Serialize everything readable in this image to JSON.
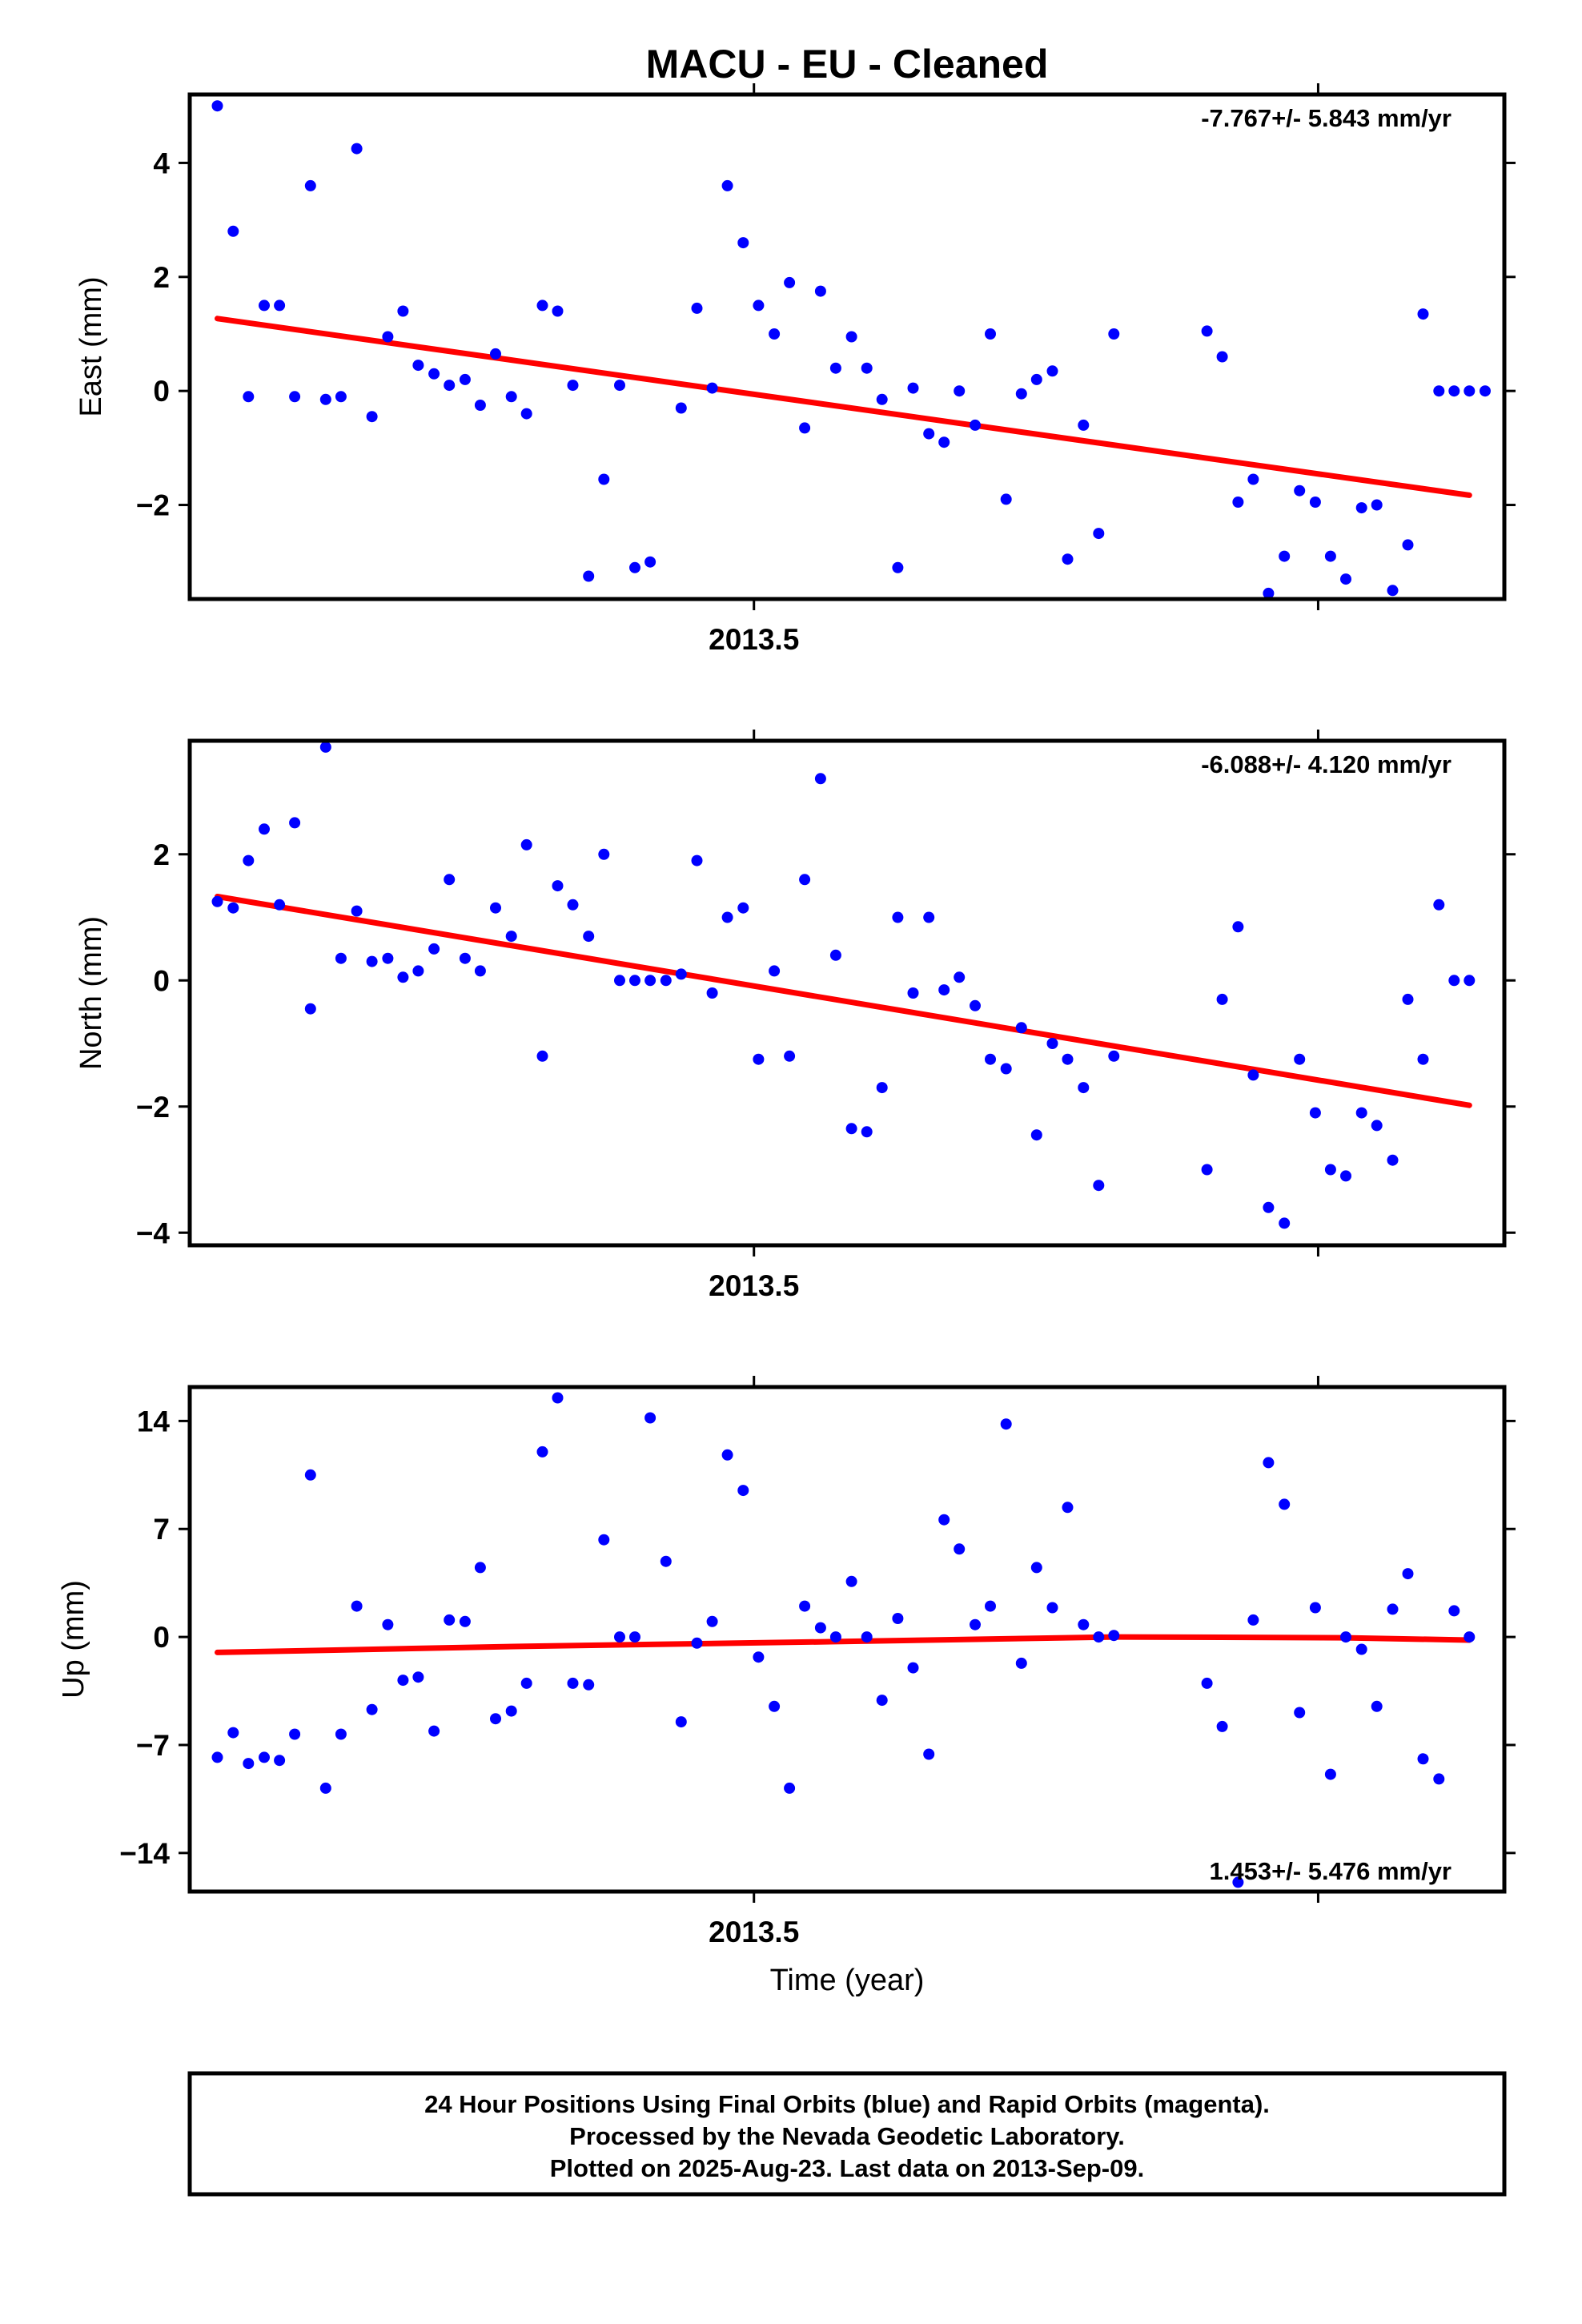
{
  "title": "MACU  - EU - Cleaned",
  "colors": {
    "points": "#0000ff",
    "fit": "#ff0000",
    "frame": "#000000"
  },
  "footer": {
    "line1": "24 Hour Positions Using Final Orbits (blue) and Rapid Orbits (magenta).",
    "line2": "Processed by the Nevada Geodetic Laboratory.",
    "line3": "Plotted on 2025-Aug-23. Last data on 2013-Sep-09."
  },
  "chart_data": [
    {
      "type": "scatter",
      "ylabel": "East (mm)",
      "xlabel": "",
      "xlim": [
        2013.4,
        2013.633
      ],
      "ylim": [
        -3.65,
        5.2
      ],
      "yticks": [
        4,
        2,
        0,
        -2
      ],
      "ytick_labels": [
        "4",
        "2",
        "0",
        "−2"
      ],
      "xticks": [
        2013.5,
        2013.6
      ],
      "xtick_labels": [
        "2013.5",
        ""
      ],
      "rate": "-7.767+/- 5.843 mm/yr",
      "rate_position": "top-right",
      "x": [
        2013.4049,
        2013.4077,
        2013.4104,
        2013.4132,
        2013.4159,
        2013.4186,
        2013.4214,
        2013.4241,
        2013.4268,
        2013.4296,
        2013.4323,
        2013.4351,
        2013.4378,
        2013.4405,
        2013.4433,
        2013.446,
        2013.4488,
        2013.4515,
        2013.4542,
        2013.457,
        2013.4597,
        2013.4625,
        2013.4652,
        2013.4679,
        2013.4707,
        2013.4734,
        2013.4762,
        2013.4789,
        2013.4816,
        2013.4871,
        2013.4899,
        2013.4926,
        2013.4953,
        2013.4981,
        2013.5008,
        2013.5036,
        2013.5063,
        2013.509,
        2013.5118,
        2013.5145,
        2013.5173,
        2013.52,
        2013.5227,
        2013.5255,
        2013.5282,
        2013.531,
        2013.5337,
        2013.5364,
        2013.5392,
        2013.5419,
        2013.5447,
        2013.5474,
        2013.5501,
        2013.5529,
        2013.5556,
        2013.5584,
        2013.5611,
        2013.5638,
        2013.5803,
        2013.583,
        2013.5858,
        2013.5885,
        2013.5912,
        2013.594,
        2013.5967,
        2013.5995,
        2013.6022,
        2013.6049,
        2013.6077,
        2013.6104,
        2013.6132,
        2013.6159,
        2013.6186,
        2013.6214,
        2013.6241,
        2013.6268,
        2013.6296
      ],
      "y": [
        5.0,
        2.8,
        -0.1,
        1.5,
        1.5,
        -0.1,
        3.6,
        -0.15,
        -0.1,
        4.25,
        -0.45,
        0.95,
        1.4,
        0.45,
        0.3,
        0.1,
        0.2,
        -0.25,
        0.65,
        -0.1,
        -0.4,
        1.5,
        1.4,
        0.1,
        -3.25,
        -1.55,
        0.1,
        -3.1,
        -3.0,
        -0.3,
        1.45,
        0.05,
        3.6,
        2.6,
        1.5,
        1.0,
        1.9,
        -0.65,
        1.75,
        0.4,
        0.95,
        0.4,
        -0.15,
        -3.1,
        0.05,
        -0.75,
        -0.9,
        0.0,
        -0.6,
        1.0,
        -1.9,
        -0.05,
        0.2,
        0.35,
        -2.95,
        -0.6,
        -2.5,
        1.0,
        1.05,
        0.6,
        -1.95,
        -1.55,
        -3.55,
        -2.9,
        -1.75,
        -1.95,
        -2.9,
        -3.3,
        -2.05,
        -2.0,
        -3.5,
        -2.7,
        1.35,
        0,
        0,
        0,
        0
      ],
      "fit": {
        "x": [
          2013.4049,
          2013.6268
        ],
        "y": [
          1.27,
          -1.83
        ]
      }
    },
    {
      "type": "scatter",
      "ylabel": "North (mm)",
      "xlabel": "",
      "xlim": [
        2013.4,
        2013.633
      ],
      "ylim": [
        -4.2,
        3.8
      ],
      "yticks": [
        2,
        0,
        -2,
        -4
      ],
      "ytick_labels": [
        "2",
        "0",
        "−2",
        "−4"
      ],
      "xticks": [
        2013.5,
        2013.6
      ],
      "xtick_labels": [
        "2013.5",
        ""
      ],
      "rate": "-6.088+/- 4.120 mm/yr",
      "rate_position": "top-right",
      "x": [
        2013.4049,
        2013.4077,
        2013.4104,
        2013.4132,
        2013.4159,
        2013.4186,
        2013.4214,
        2013.4241,
        2013.4268,
        2013.4296,
        2013.4323,
        2013.4351,
        2013.4378,
        2013.4405,
        2013.4433,
        2013.446,
        2013.4488,
        2013.4515,
        2013.4542,
        2013.457,
        2013.4597,
        2013.4625,
        2013.4652,
        2013.4679,
        2013.4707,
        2013.4734,
        2013.4762,
        2013.4789,
        2013.4816,
        2013.4844,
        2013.4871,
        2013.4899,
        2013.4926,
        2013.4953,
        2013.4981,
        2013.5008,
        2013.5036,
        2013.5063,
        2013.509,
        2013.5118,
        2013.5145,
        2013.5173,
        2013.52,
        2013.5227,
        2013.5255,
        2013.5282,
        2013.531,
        2013.5337,
        2013.5364,
        2013.5392,
        2013.5419,
        2013.5447,
        2013.5474,
        2013.5501,
        2013.5529,
        2013.5556,
        2013.5584,
        2013.5611,
        2013.5638,
        2013.5803,
        2013.583,
        2013.5858,
        2013.5885,
        2013.5912,
        2013.594,
        2013.5967,
        2013.5995,
        2013.6022,
        2013.6049,
        2013.6077,
        2013.6104,
        2013.6132,
        2013.6159,
        2013.6186,
        2013.6214,
        2013.6241,
        2013.6268
      ],
      "y": [
        1.25,
        1.15,
        1.9,
        2.4,
        1.2,
        2.5,
        -0.45,
        3.7,
        0.35,
        1.1,
        0.3,
        0.35,
        0.05,
        0.15,
        0.5,
        1.6,
        0.35,
        0.15,
        1.15,
        0.7,
        2.15,
        -1.2,
        1.5,
        1.2,
        0.7,
        2.0,
        0.0,
        0.0,
        0.0,
        0.0,
        0.1,
        1.9,
        -0.2,
        1.0,
        1.15,
        -1.25,
        0.15,
        -1.2,
        1.6,
        3.2,
        0.4,
        -2.35,
        -2.4,
        -1.7,
        1.0,
        -0.2,
        1.0,
        -0.15,
        0.05,
        -0.4,
        -1.25,
        -1.4,
        -0.75,
        -2.45,
        -1.0,
        -1.25,
        -1.7,
        -3.25,
        -1.2,
        -3.0,
        -0.3,
        0.85,
        -1.5,
        -3.6,
        -3.85,
        -1.25,
        -2.1,
        -3.0,
        -3.1,
        -2.1,
        -2.3,
        -2.85,
        -0.3,
        -1.25,
        1.2,
        0.0,
        0.0
      ],
      "fit": {
        "x": [
          2013.4049,
          2013.6268
        ],
        "y": [
          1.33,
          -1.98
        ]
      }
    },
    {
      "type": "scatter",
      "ylabel": "Up (mm)",
      "xlabel": "Time (year)",
      "xlim": [
        2013.4,
        2013.633
      ],
      "ylim": [
        -16.5,
        16.2
      ],
      "yticks": [
        14,
        7,
        0,
        -7,
        -14
      ],
      "ytick_labels": [
        "14",
        "7",
        "0",
        "−7",
        "−14"
      ],
      "xticks": [
        2013.5,
        2013.6
      ],
      "xtick_labels": [
        "2013.5",
        ""
      ],
      "rate": "1.453+/- 5.476 mm/yr",
      "rate_position": "bottom-right",
      "x": [
        2013.4049,
        2013.4077,
        2013.4104,
        2013.4132,
        2013.4159,
        2013.4186,
        2013.4214,
        2013.4241,
        2013.4268,
        2013.4296,
        2013.4323,
        2013.4351,
        2013.4378,
        2013.4405,
        2013.4433,
        2013.446,
        2013.4488,
        2013.4515,
        2013.4542,
        2013.457,
        2013.4597,
        2013.4625,
        2013.4652,
        2013.4679,
        2013.4707,
        2013.4734,
        2013.4762,
        2013.4789,
        2013.4816,
        2013.4844,
        2013.4871,
        2013.4899,
        2013.4926,
        2013.4953,
        2013.4981,
        2013.5008,
        2013.5036,
        2013.5063,
        2013.509,
        2013.5118,
        2013.5145,
        2013.5173,
        2013.52,
        2013.5227,
        2013.5255,
        2013.5282,
        2013.531,
        2013.5337,
        2013.5364,
        2013.5392,
        2013.5419,
        2013.5447,
        2013.5474,
        2013.5501,
        2013.5529,
        2013.5556,
        2013.5584,
        2013.5611,
        2013.5638,
        2013.5803,
        2013.583,
        2013.5858,
        2013.5885,
        2013.5912,
        2013.594,
        2013.5967,
        2013.5995,
        2013.6022,
        2013.6049,
        2013.6077,
        2013.6104,
        2013.6132,
        2013.6159,
        2013.6186,
        2013.6214,
        2013.6241,
        2013.6268
      ],
      "y": [
        -7.8,
        -6.2,
        -8.2,
        -7.8,
        -8.0,
        -6.3,
        10.5,
        -9.8,
        -6.3,
        2.0,
        -4.7,
        0.8,
        -2.8,
        -2.6,
        -6.1,
        1.1,
        1.0,
        4.5,
        -5.3,
        -4.8,
        -3.0,
        12.0,
        15.5,
        -3.0,
        -3.1,
        6.3,
        0.0,
        0.0,
        14.2,
        4.9,
        -5.5,
        -0.4,
        1.0,
        11.8,
        9.5,
        -1.3,
        -4.5,
        -9.8,
        2.0,
        0.6,
        0.0,
        3.6,
        0.0,
        -4.1,
        1.2,
        -2.0,
        -7.6,
        7.6,
        5.7,
        0.8,
        2.0,
        13.8,
        -1.7,
        4.5,
        1.9,
        8.4,
        0.8,
        0.0,
        0.1,
        -3.0,
        -5.8,
        -15.9,
        1.1,
        11.3,
        8.6,
        -4.9,
        1.9,
        -8.9,
        0.0,
        -0.8,
        -4.5,
        1.8,
        4.1,
        -7.9,
        -9.2,
        1.7,
        0.0
      ],
      "fit": {
        "x": [
          2013.4049,
          2013.4595,
          2013.5145,
          2013.5638,
          2013.6049,
          2013.6268
        ],
        "y": [
          -1.0,
          -0.6,
          -0.3,
          0.0,
          -0.05,
          -0.2
        ]
      }
    }
  ]
}
